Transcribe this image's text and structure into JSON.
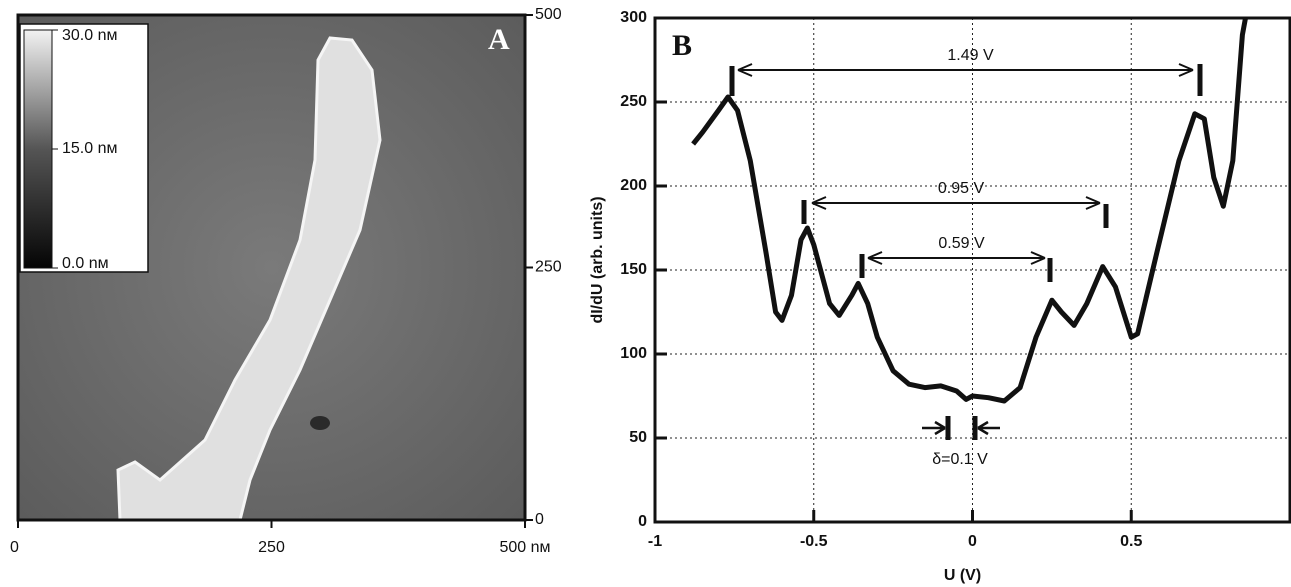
{
  "chart_data": [
    {
      "type": "image",
      "panel_label": "A",
      "xlim": [
        0,
        500
      ],
      "xticks": [
        0,
        250,
        {
          "value": 500,
          "label": "500 nм"
        }
      ],
      "ylim": [
        0,
        500
      ],
      "yticks": [
        0,
        250,
        500
      ],
      "clim": [
        0,
        30
      ],
      "cticks": [
        {
          "value": 30,
          "label": "30.0 nм"
        },
        {
          "value": 15,
          "label": "15.0 nм"
        },
        {
          "value": 0,
          "label": "0.0 nм"
        }
      ]
    },
    {
      "type": "line",
      "panel_label": "B",
      "xlabel": "U (V)",
      "ylabel": "dI/dU (arb. units)",
      "xlim": [
        -1,
        1
      ],
      "xticks": [
        -1,
        -0.5,
        0,
        0.5
      ],
      "ylim": [
        0,
        300
      ],
      "yticks": [
        0,
        50,
        100,
        150,
        200,
        250,
        300
      ],
      "grid": true,
      "color": "#111111",
      "x": [
        -0.88,
        -0.85,
        -0.8,
        -0.77,
        -0.74,
        -0.7,
        -0.65,
        -0.62,
        -0.6,
        -0.57,
        -0.54,
        -0.52,
        -0.5,
        -0.45,
        -0.42,
        -0.38,
        -0.36,
        -0.33,
        -0.3,
        -0.25,
        -0.2,
        -0.15,
        -0.1,
        -0.05,
        -0.02,
        0,
        0.05,
        0.1,
        0.15,
        0.2,
        0.25,
        0.28,
        0.32,
        0.36,
        0.41,
        0.45,
        0.5,
        0.52,
        0.58,
        0.65,
        0.7,
        0.73,
        0.76,
        0.79,
        0.82,
        0.85,
        0.86
      ],
      "values": [
        225,
        232,
        245,
        253,
        245,
        215,
        160,
        125,
        120,
        135,
        168,
        175,
        165,
        130,
        123,
        135,
        142,
        130,
        110,
        90,
        82,
        80,
        81,
        78,
        73,
        75,
        74,
        72,
        80,
        110,
        132,
        125,
        117,
        130,
        152,
        140,
        110,
        112,
        160,
        215,
        243,
        240,
        205,
        188,
        215,
        290,
        300
      ],
      "annotations": [
        "1.49 V",
        "0.95 V",
        "0.59 V",
        "δ=0.1 V"
      ]
    }
  ]
}
